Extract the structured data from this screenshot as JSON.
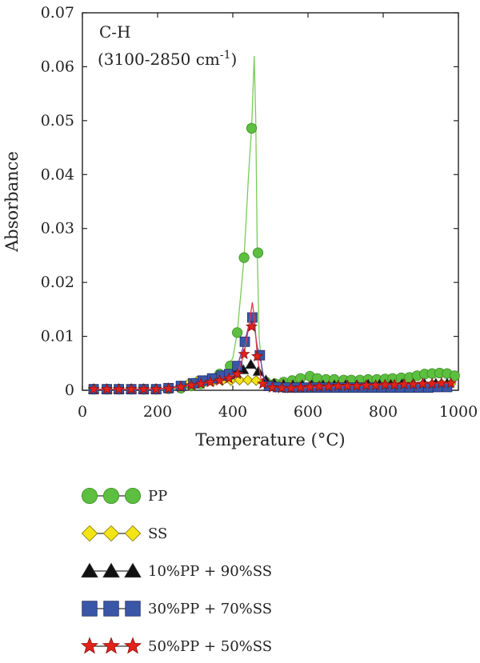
{
  "chart_data": {
    "type": "line",
    "annotation": {
      "line1": "C-H",
      "line2_prefix": "(3100-2850 cm",
      "line2_sup": "-1",
      "line2_suffix": ")"
    },
    "xlabel": "Temperature (°C)",
    "ylabel": "Absorbance",
    "xlim": [
      0,
      1000
    ],
    "ylim": [
      0,
      0.07
    ],
    "xticks": [
      0,
      200,
      400,
      600,
      800,
      1000
    ],
    "yticks": [
      0,
      0.01,
      0.02,
      0.03,
      0.04,
      0.05,
      0.06,
      0.07
    ],
    "xtick_labels": [
      "0",
      "200",
      "400",
      "600",
      "800",
      "1000"
    ],
    "ytick_labels": [
      "0",
      "0.01",
      "0.02",
      "0.03",
      "0.04",
      "0.05",
      "0.06",
      "0.07"
    ],
    "grid": false,
    "legend_position": "bottom",
    "series": [
      {
        "name": "PP",
        "marker": "circle",
        "color": "#5cbf3f",
        "line_color": "#7acb5a",
        "markers": [
          [
            30,
            0.0002
          ],
          [
            65,
            0.0002
          ],
          [
            97,
            0.0002
          ],
          [
            130,
            0.0002
          ],
          [
            163,
            0.0002
          ],
          [
            196,
            0.0002
          ],
          [
            229,
            0.0003
          ],
          [
            262,
            0.0004
          ],
          [
            290,
            0.0008
          ],
          [
            315,
            0.0012
          ],
          [
            340,
            0.002
          ],
          [
            365,
            0.003
          ],
          [
            393,
            0.0045
          ],
          [
            412,
            0.0107
          ],
          [
            430,
            0.0246
          ],
          [
            450,
            0.0486
          ],
          [
            467,
            0.0255
          ],
          [
            488,
            0.0015
          ],
          [
            512,
            0.0012
          ],
          [
            535,
            0.0015
          ],
          [
            558,
            0.0018
          ],
          [
            580,
            0.0022
          ],
          [
            605,
            0.0026
          ],
          [
            625,
            0.0022
          ],
          [
            648,
            0.002
          ],
          [
            670,
            0.002
          ],
          [
            695,
            0.0019
          ],
          [
            715,
            0.0019
          ],
          [
            738,
            0.0019
          ],
          [
            760,
            0.002
          ],
          [
            783,
            0.002
          ],
          [
            805,
            0.0021
          ],
          [
            825,
            0.0022
          ],
          [
            848,
            0.0023
          ],
          [
            870,
            0.0024
          ],
          [
            890,
            0.0027
          ],
          [
            910,
            0.003
          ],
          [
            930,
            0.0031
          ],
          [
            950,
            0.0032
          ],
          [
            970,
            0.0031
          ],
          [
            990,
            0.0027
          ]
        ],
        "curve": [
          [
            25,
            0.0002
          ],
          [
            250,
            0.0003
          ],
          [
            320,
            0.0012
          ],
          [
            380,
            0.0035
          ],
          [
            400,
            0.006
          ],
          [
            412,
            0.0107
          ],
          [
            430,
            0.0246
          ],
          [
            442,
            0.04
          ],
          [
            450,
            0.0486
          ],
          [
            457,
            0.062
          ],
          [
            461,
            0.05
          ],
          [
            465,
            0.0255
          ],
          [
            470,
            0.01
          ],
          [
            478,
            0.003
          ],
          [
            488,
            0.0015
          ],
          [
            520,
            0.0012
          ],
          [
            560,
            0.0015
          ],
          [
            575,
            0.0025
          ],
          [
            580,
            0.0015
          ],
          [
            600,
            0.0026
          ],
          [
            605,
            0.0035
          ],
          [
            615,
            0.0022
          ],
          [
            700,
            0.0019
          ],
          [
            800,
            0.002
          ],
          [
            900,
            0.0028
          ],
          [
            960,
            0.0032
          ],
          [
            995,
            0.0027
          ]
        ]
      },
      {
        "name": "SS",
        "marker": "diamond",
        "color": "#f3e515",
        "line_color": "#c8b800",
        "markers": [
          [
            30,
            0.0002
          ],
          [
            65,
            0.0002
          ],
          [
            97,
            0.0002
          ],
          [
            130,
            0.0002
          ],
          [
            163,
            0.0002
          ],
          [
            196,
            0.0002
          ],
          [
            229,
            0.0004
          ],
          [
            262,
            0.0008
          ],
          [
            283,
            0.0013
          ],
          [
            305,
            0.0017
          ],
          [
            325,
            0.0018
          ],
          [
            350,
            0.0018
          ],
          [
            372,
            0.0018
          ],
          [
            395,
            0.0018
          ],
          [
            418,
            0.0019
          ],
          [
            440,
            0.0019
          ],
          [
            462,
            0.0018
          ],
          [
            485,
            0.0016
          ],
          [
            508,
            0.0012
          ],
          [
            530,
            0.001
          ],
          [
            555,
            0.0009
          ],
          [
            580,
            0.0008
          ],
          [
            605,
            0.0008
          ],
          [
            630,
            0.0008
          ],
          [
            655,
            0.0008
          ],
          [
            680,
            0.0008
          ],
          [
            705,
            0.0009
          ],
          [
            730,
            0.0009
          ],
          [
            755,
            0.0009
          ],
          [
            780,
            0.0009
          ],
          [
            805,
            0.001
          ],
          [
            830,
            0.001
          ],
          [
            855,
            0.001
          ],
          [
            880,
            0.0011
          ],
          [
            905,
            0.0011
          ],
          [
            930,
            0.0011
          ],
          [
            955,
            0.0012
          ],
          [
            980,
            0.0012
          ]
        ],
        "curve": [
          [
            25,
            0.0002
          ],
          [
            200,
            0.0002
          ],
          [
            262,
            0.0008
          ],
          [
            300,
            0.0016
          ],
          [
            350,
            0.0018
          ],
          [
            440,
            0.0019
          ],
          [
            500,
            0.0014
          ],
          [
            560,
            0.0009
          ],
          [
            700,
            0.0009
          ],
          [
            850,
            0.001
          ],
          [
            985,
            0.0012
          ]
        ]
      },
      {
        "name": "10%PP + 90%SS",
        "marker": "triangle",
        "color": "#111111",
        "line_color": "#222222",
        "markers": [
          [
            30,
            0.0002
          ],
          [
            65,
            0.0002
          ],
          [
            97,
            0.0002
          ],
          [
            130,
            0.0002
          ],
          [
            163,
            0.0002
          ],
          [
            196,
            0.0002
          ],
          [
            229,
            0.0004
          ],
          [
            262,
            0.0008
          ],
          [
            295,
            0.0013
          ],
          [
            325,
            0.0018
          ],
          [
            355,
            0.0023
          ],
          [
            385,
            0.0028
          ],
          [
            408,
            0.0032
          ],
          [
            428,
            0.0038
          ],
          [
            448,
            0.0048
          ],
          [
            468,
            0.0035
          ],
          [
            488,
            0.0019
          ],
          [
            510,
            0.0013
          ],
          [
            535,
            0.0011
          ],
          [
            560,
            0.001
          ],
          [
            585,
            0.001
          ],
          [
            610,
            0.001
          ],
          [
            640,
            0.001
          ],
          [
            670,
            0.001
          ],
          [
            700,
            0.001
          ],
          [
            730,
            0.001
          ],
          [
            760,
            0.0011
          ],
          [
            790,
            0.0011
          ],
          [
            820,
            0.0011
          ],
          [
            850,
            0.0012
          ],
          [
            880,
            0.0012
          ],
          [
            910,
            0.0012
          ],
          [
            940,
            0.0013
          ],
          [
            970,
            0.0013
          ]
        ],
        "curve": [
          [
            25,
            0.0002
          ],
          [
            200,
            0.0002
          ],
          [
            262,
            0.0008
          ],
          [
            330,
            0.0019
          ],
          [
            400,
            0.003
          ],
          [
            430,
            0.0039
          ],
          [
            448,
            0.0048
          ],
          [
            470,
            0.0033
          ],
          [
            495,
            0.0016
          ],
          [
            540,
            0.0011
          ],
          [
            700,
            0.001
          ],
          [
            850,
            0.0012
          ],
          [
            975,
            0.0013
          ]
        ]
      },
      {
        "name": "30%PP + 70%SS",
        "marker": "square",
        "color": "#3a56a6",
        "line_color": "#6a3fb0",
        "markers": [
          [
            30,
            0.0002
          ],
          [
            65,
            0.0002
          ],
          [
            97,
            0.0002
          ],
          [
            130,
            0.0002
          ],
          [
            163,
            0.0002
          ],
          [
            196,
            0.0002
          ],
          [
            229,
            0.0004
          ],
          [
            262,
            0.0008
          ],
          [
            295,
            0.0013
          ],
          [
            320,
            0.0018
          ],
          [
            345,
            0.0022
          ],
          [
            370,
            0.0027
          ],
          [
            390,
            0.003
          ],
          [
            412,
            0.0045
          ],
          [
            432,
            0.009
          ],
          [
            452,
            0.0135
          ],
          [
            472,
            0.0065
          ],
          [
            496,
            0.0008
          ],
          [
            520,
            0.0006
          ],
          [
            545,
            0.0005
          ],
          [
            570,
            0.0005
          ],
          [
            595,
            0.0005
          ],
          [
            620,
            0.0005
          ],
          [
            645,
            0.0005
          ],
          [
            670,
            0.0005
          ],
          [
            695,
            0.0005
          ],
          [
            720,
            0.0005
          ],
          [
            745,
            0.0005
          ],
          [
            770,
            0.0005
          ],
          [
            795,
            0.0005
          ],
          [
            820,
            0.0005
          ],
          [
            845,
            0.0005
          ],
          [
            870,
            0.0005
          ],
          [
            895,
            0.0005
          ],
          [
            920,
            0.0005
          ],
          [
            945,
            0.0006
          ],
          [
            970,
            0.0006
          ]
        ],
        "curve": [
          [
            25,
            0.0002
          ],
          [
            200,
            0.0002
          ],
          [
            262,
            0.0008
          ],
          [
            330,
            0.0019
          ],
          [
            390,
            0.003
          ],
          [
            412,
            0.0045
          ],
          [
            432,
            0.009
          ],
          [
            446,
            0.013
          ],
          [
            452,
            0.0135
          ],
          [
            458,
            0.0115
          ],
          [
            465,
            0.008
          ],
          [
            472,
            0.0065
          ],
          [
            482,
            0.0025
          ],
          [
            496,
            0.0008
          ],
          [
            560,
            0.0005
          ],
          [
            800,
            0.0005
          ],
          [
            975,
            0.0006
          ]
        ]
      },
      {
        "name": "50%PP + 50%SS",
        "marker": "star",
        "color": "#e2231a",
        "line_color": "#e23a4a",
        "markers": [
          [
            30,
            0.0002
          ],
          [
            65,
            0.0002
          ],
          [
            97,
            0.0002
          ],
          [
            130,
            0.0002
          ],
          [
            163,
            0.0002
          ],
          [
            196,
            0.0002
          ],
          [
            229,
            0.0003
          ],
          [
            262,
            0.0006
          ],
          [
            290,
            0.0009
          ],
          [
            315,
            0.0012
          ],
          [
            340,
            0.0015
          ],
          [
            365,
            0.0018
          ],
          [
            390,
            0.0022
          ],
          [
            412,
            0.003
          ],
          [
            430,
            0.0067
          ],
          [
            450,
            0.0118
          ],
          [
            465,
            0.0063
          ],
          [
            480,
            0.0012
          ],
          [
            505,
            0.0005
          ],
          [
            530,
            0.0004
          ],
          [
            555,
            0.0004
          ],
          [
            580,
            0.0005
          ],
          [
            605,
            0.0006
          ],
          [
            630,
            0.0007
          ],
          [
            655,
            0.0007
          ],
          [
            680,
            0.0008
          ],
          [
            705,
            0.0008
          ],
          [
            730,
            0.0008
          ],
          [
            755,
            0.0009
          ],
          [
            780,
            0.0009
          ],
          [
            805,
            0.001
          ],
          [
            830,
            0.001
          ],
          [
            855,
            0.0011
          ],
          [
            880,
            0.0011
          ],
          [
            905,
            0.0012
          ],
          [
            930,
            0.0012
          ],
          [
            955,
            0.0013
          ],
          [
            980,
            0.0013
          ]
        ],
        "curve": [
          [
            25,
            0.0002
          ],
          [
            200,
            0.0002
          ],
          [
            262,
            0.0006
          ],
          [
            340,
            0.0015
          ],
          [
            412,
            0.003
          ],
          [
            430,
            0.0067
          ],
          [
            443,
            0.012
          ],
          [
            452,
            0.0163
          ],
          [
            458,
            0.013
          ],
          [
            465,
            0.0063
          ],
          [
            475,
            0.002
          ],
          [
            495,
            0.0006
          ],
          [
            560,
            0.0004
          ],
          [
            700,
            0.0008
          ],
          [
            850,
            0.0011
          ],
          [
            985,
            0.0013
          ]
        ]
      }
    ]
  }
}
